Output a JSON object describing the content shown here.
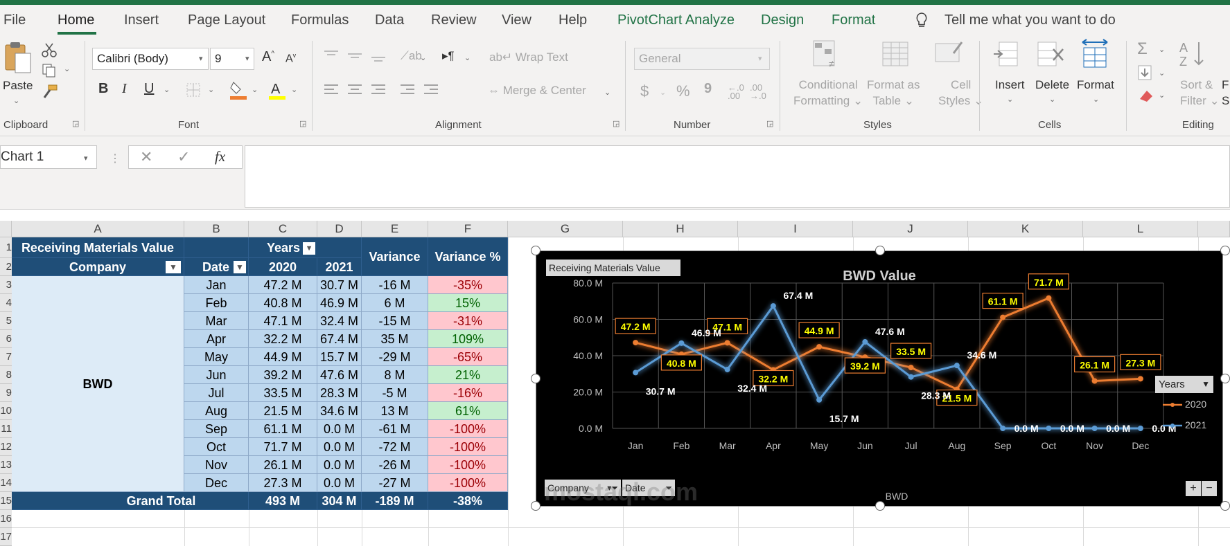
{
  "menu": {
    "tabs": [
      "File",
      "Home",
      "Insert",
      "Page Layout",
      "Formulas",
      "Data",
      "Review",
      "View",
      "Help",
      "PivotChart Analyze",
      "Design",
      "Format"
    ],
    "tell_me": "Tell me what you want to do"
  },
  "ribbon": {
    "clipboard": {
      "paste": "Paste",
      "group": "Clipboard"
    },
    "font": {
      "name": "Calibri (Body)",
      "size": "9",
      "bold": "B",
      "italic": "I",
      "underline": "U",
      "group": "Font"
    },
    "alignment": {
      "wrap_text": "Wrap Text",
      "merge_center": "Merge & Center",
      "group": "Alignment"
    },
    "number": {
      "format": "General",
      "currency": "$",
      "percent": "%",
      "comma": "9",
      "inc_decimal": "←.0\n.00",
      "dec_decimal": ".00\n→.0",
      "group": "Number"
    },
    "styles": {
      "conditional_formatting": [
        "Conditional",
        "Formatting"
      ],
      "format_as_table": [
        "Format as",
        "Table"
      ],
      "cell_styles": [
        "Cell",
        "Styles"
      ],
      "group": "Styles"
    },
    "cells": {
      "insert": "Insert",
      "delete": "Delete",
      "format": "Format",
      "group": "Cells"
    },
    "editing": {
      "sort_filter": [
        "Sort &",
        "Filter"
      ],
      "find_select": [
        "F",
        "Se"
      ],
      "group": "Editing"
    }
  },
  "formula_bar": {
    "name_box": "Chart 1",
    "fx": "fx",
    "formula": ""
  },
  "grid": {
    "columns": [
      "A",
      "B",
      "C",
      "D",
      "E",
      "F",
      "G",
      "H",
      "I",
      "J",
      "K",
      "L"
    ],
    "rows": [
      "1",
      "2",
      "3",
      "4",
      "5",
      "6",
      "7",
      "8",
      "9",
      "10",
      "11",
      "12",
      "13",
      "14",
      "15",
      "16",
      "17"
    ]
  },
  "pivot": {
    "title": "Receiving Materials  Value",
    "years_label": "Years",
    "variance_label": "Variance",
    "variance_pct_label": "Variance %",
    "company_label": "Company",
    "date_label": "Date",
    "year1": "2020",
    "year2": "2021",
    "company": "BWD",
    "months": [
      {
        "m": "Jan",
        "y2020": "47.2 M",
        "y2021": "30.7 M",
        "var": "-16 M",
        "pct": "-35%"
      },
      {
        "m": "Feb",
        "y2020": "40.8 M",
        "y2021": "46.9 M",
        "var": "6 M",
        "pct": "15%"
      },
      {
        "m": "Mar",
        "y2020": "47.1 M",
        "y2021": "32.4 M",
        "var": "-15 M",
        "pct": "-31%"
      },
      {
        "m": "Apr",
        "y2020": "32.2 M",
        "y2021": "67.4 M",
        "var": "35 M",
        "pct": "109%"
      },
      {
        "m": "May",
        "y2020": "44.9 M",
        "y2021": "15.7 M",
        "var": "-29 M",
        "pct": "-65%"
      },
      {
        "m": "Jun",
        "y2020": "39.2 M",
        "y2021": "47.6 M",
        "var": "8 M",
        "pct": "21%"
      },
      {
        "m": "Jul",
        "y2020": "33.5 M",
        "y2021": "28.3 M",
        "var": "-5 M",
        "pct": "-16%"
      },
      {
        "m": "Aug",
        "y2020": "21.5 M",
        "y2021": "34.6 M",
        "var": "13 M",
        "pct": "61%"
      },
      {
        "m": "Sep",
        "y2020": "61.1 M",
        "y2021": "0.0 M",
        "var": "-61 M",
        "pct": "-100%"
      },
      {
        "m": "Oct",
        "y2020": "71.7 M",
        "y2021": "0.0 M",
        "var": "-72 M",
        "pct": "-100%"
      },
      {
        "m": "Nov",
        "y2020": "26.1 M",
        "y2021": "0.0 M",
        "var": "-26 M",
        "pct": "-100%"
      },
      {
        "m": "Dec",
        "y2020": "27.3 M",
        "y2021": "0.0 M",
        "var": "-27 M",
        "pct": "-100%"
      }
    ],
    "grand_total": {
      "label": "Grand Total",
      "y2020": "493 M",
      "y2021": "304 M",
      "var": "-189 M",
      "pct": "-38%"
    }
  },
  "chart_data": {
    "type": "line",
    "title": "BWD Value",
    "field_button": "Receiving Materials  Value",
    "categories": [
      "Jan",
      "Feb",
      "Mar",
      "Apr",
      "May",
      "Jun",
      "Jul",
      "Aug",
      "Sep",
      "Oct",
      "Nov",
      "Dec"
    ],
    "series": [
      {
        "name": "2020",
        "values": [
          47.2,
          40.8,
          47.1,
          32.2,
          44.9,
          39.2,
          33.5,
          21.5,
          61.1,
          71.7,
          26.1,
          27.3
        ],
        "labels": [
          "47.2 M",
          "40.8 M",
          "47.1 M",
          "32.2 M",
          "44.9 M",
          "39.2 M",
          "33.5 M",
          "21.5 M",
          "61.1 M",
          "71.7 M",
          "26.1 M",
          "27.3 M"
        ],
        "color": "#ed7d31"
      },
      {
        "name": "2021",
        "values": [
          30.7,
          46.9,
          32.4,
          67.4,
          15.7,
          47.6,
          28.3,
          34.6,
          0.0,
          0.0,
          0.0,
          0.0
        ],
        "labels": [
          "30.7 M",
          "46.9 M",
          "32.4 M",
          "67.4 M",
          "15.7 M",
          "47.6 M",
          "28.3 M",
          "34.6 M",
          "0.0 M",
          "0.0 M",
          "0.0 M",
          "0.0 M"
        ],
        "color": "#5b9bd5"
      }
    ],
    "yticks": [
      "0.0 M",
      "20.0 M",
      "40.0 M",
      "60.0 M",
      "80.0 M"
    ],
    "ylim": [
      0,
      80
    ],
    "grid": true,
    "legend_title": "Years",
    "legend_placement": "right",
    "xlabel": "BWD",
    "filter_buttons": [
      "Company",
      "Date"
    ],
    "zoom_buttons": [
      "+",
      "−"
    ]
  },
  "watermark": "mostaql.com",
  "colors": {
    "excel_green": "#217346",
    "header_blue": "#1f4e78",
    "light_blue": "#bdd7ee",
    "pink": "#ffc7ce",
    "green": "#c6efce"
  }
}
